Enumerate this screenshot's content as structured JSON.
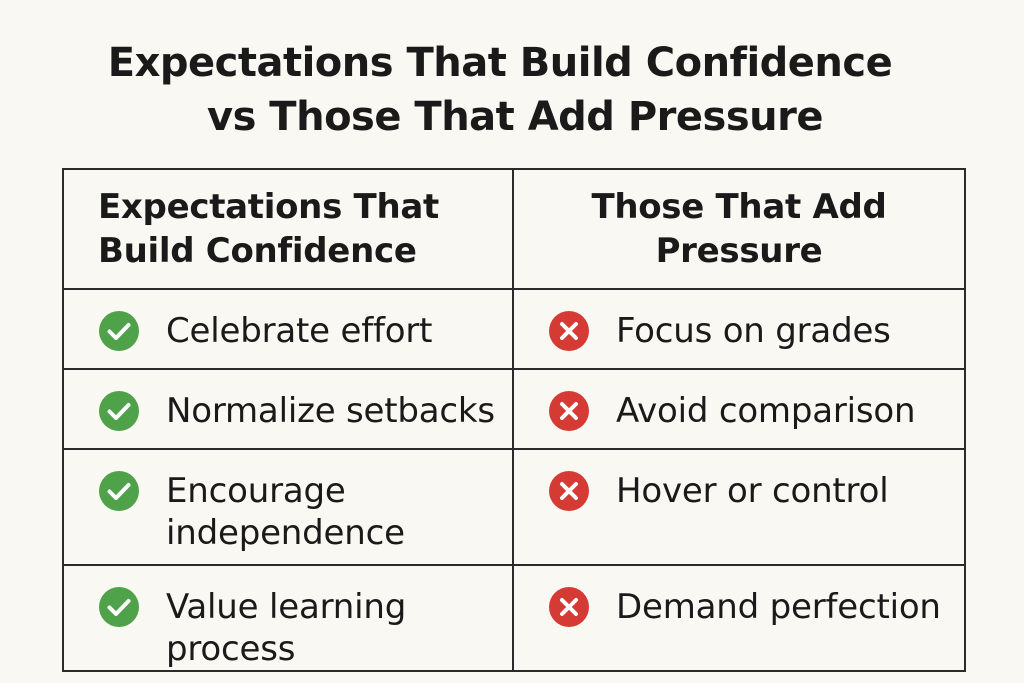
{
  "title": {
    "line1": "Expectations That Build Confidence",
    "line2": "vs Those That Add Pressure"
  },
  "columns": {
    "left_header_line1": "Expectations That",
    "left_header_line2": "Build Confidence",
    "right_header_line1": "Those That Add",
    "right_header_line2": "Pressure"
  },
  "rows": [
    {
      "left": "Celebrate effort",
      "right": "Focus on grades"
    },
    {
      "left": "Normalize setbacks",
      "right": "Avoid comparison"
    },
    {
      "left": "Encourage independence",
      "right": "Hover or control"
    },
    {
      "left": "Value learning process",
      "right": "Demand perfection"
    }
  ],
  "icons": {
    "left": "check-circle-icon",
    "right": "x-circle-icon",
    "check_color": "#4fa24a",
    "x_color": "#d63a35"
  }
}
